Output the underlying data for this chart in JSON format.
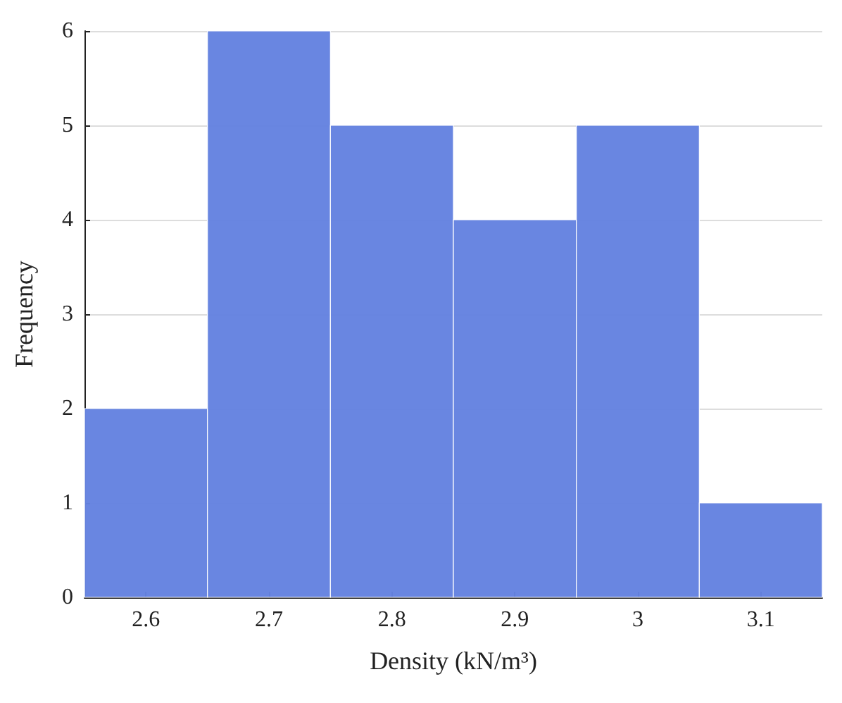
{
  "chart_data": {
    "type": "histogram",
    "xlabel": "Density (kN/m³)",
    "ylabel": "Frequency",
    "bins": [
      2.55,
      2.65,
      2.75,
      2.85,
      2.95,
      3.05,
      3.15
    ],
    "values": [
      2,
      6,
      5,
      4,
      5,
      1
    ],
    "color": "#6482e0",
    "xlim": [
      2.55,
      3.15
    ],
    "xticks": [
      2.6,
      2.7,
      2.8,
      2.9,
      3,
      3.1
    ],
    "ylim": [
      0,
      6
    ],
    "yticks": [
      0,
      1,
      2,
      3,
      4,
      5,
      6
    ],
    "grid": "y"
  }
}
